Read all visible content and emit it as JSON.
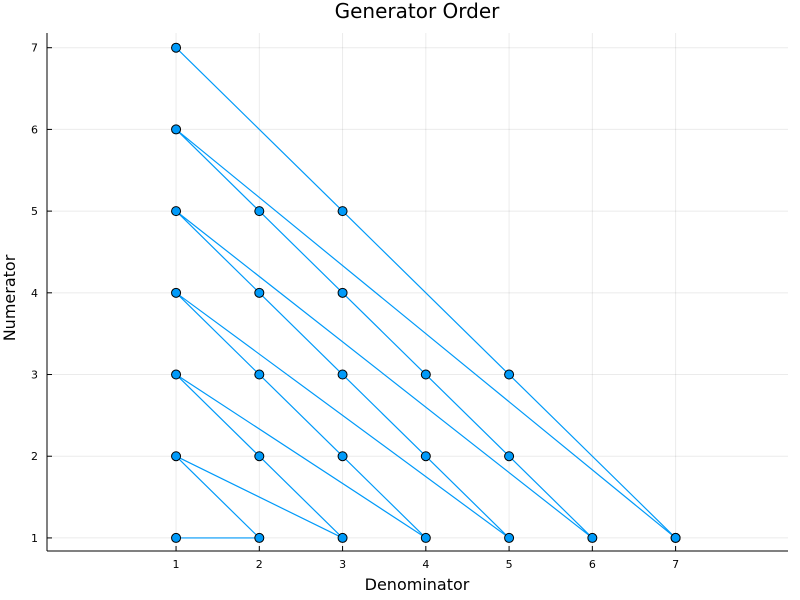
{
  "chart_data": {
    "type": "line",
    "title": "Generator Order",
    "xlabel": "Denominator",
    "ylabel": "Numerator",
    "xlim": [
      -0.55,
      8.35
    ],
    "ylim": [
      0.84,
      7.18
    ],
    "xticks": [
      1,
      2,
      3,
      4,
      5,
      6,
      7
    ],
    "yticks": [
      1,
      2,
      3,
      4,
      5,
      6,
      7
    ],
    "grid": true,
    "legend": "none",
    "colors": {
      "series": "#009AF9",
      "marker_stroke": "#000000"
    },
    "marker": "circle",
    "series": [
      {
        "x": [
          1,
          2,
          1,
          3,
          2,
          1,
          4,
          3,
          2,
          1,
          5,
          4,
          3,
          2,
          1,
          6,
          5,
          4,
          3,
          2,
          1,
          7
        ],
        "y": [
          1,
          1,
          2,
          1,
          2,
          3,
          1,
          2,
          3,
          4,
          1,
          2,
          3,
          4,
          5,
          1,
          2,
          3,
          4,
          5,
          6,
          1
        ]
      },
      {
        "x": [
          1,
          3,
          5,
          7
        ],
        "y": [
          7,
          5,
          3,
          1
        ]
      }
    ]
  }
}
